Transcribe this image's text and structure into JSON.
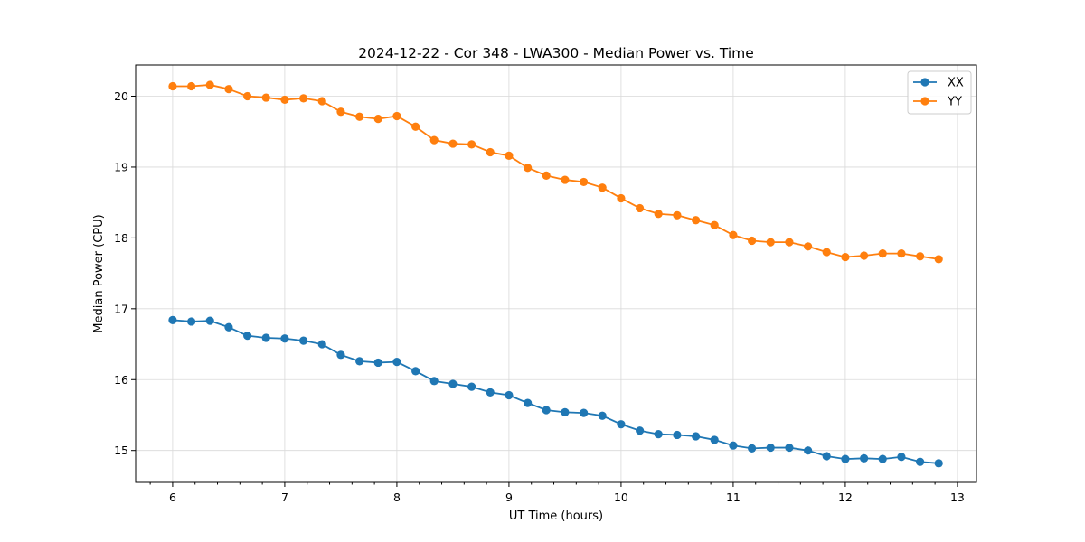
{
  "chart_data": {
    "type": "line",
    "title": "2024-12-22 - Cor 348 - LWA300 - Median Power vs. Time",
    "xlabel": "UT Time (hours)",
    "ylabel": "Median Power (CPU)",
    "xlim": [
      5.67,
      13.17
    ],
    "ylim": [
      14.55,
      20.44
    ],
    "x_ticks": [
      6,
      7,
      8,
      9,
      10,
      11,
      12,
      13
    ],
    "x_tick_labels": [
      "6",
      "7",
      "8",
      "9",
      "10",
      "11",
      "12",
      "13"
    ],
    "y_ticks": [
      15,
      16,
      17,
      18,
      19,
      20
    ],
    "y_tick_labels": [
      "15",
      "16",
      "17",
      "18",
      "19",
      "20"
    ],
    "grid": true,
    "legend_position": "top-right",
    "x": [
      6.0,
      6.167,
      6.333,
      6.5,
      6.667,
      6.833,
      7.0,
      7.167,
      7.333,
      7.5,
      7.667,
      7.833,
      8.0,
      8.167,
      8.333,
      8.5,
      8.667,
      8.833,
      9.0,
      9.167,
      9.333,
      9.5,
      9.667,
      9.833,
      10.0,
      10.167,
      10.333,
      10.5,
      10.667,
      10.833,
      11.0,
      11.167,
      11.333,
      11.5,
      11.667,
      11.833,
      12.0,
      12.167,
      12.333,
      12.5,
      12.667,
      12.833
    ],
    "series": [
      {
        "name": "XX",
        "color": "#1f77b4",
        "values": [
          16.84,
          16.82,
          16.83,
          16.74,
          16.62,
          16.59,
          16.58,
          16.55,
          16.5,
          16.35,
          16.26,
          16.24,
          16.25,
          16.12,
          15.98,
          15.94,
          15.9,
          15.82,
          15.78,
          15.67,
          15.57,
          15.54,
          15.53,
          15.49,
          15.37,
          15.28,
          15.23,
          15.22,
          15.2,
          15.15,
          15.07,
          15.03,
          15.04,
          15.04,
          15.0,
          14.92,
          14.88,
          14.89,
          14.88,
          14.91,
          14.84,
          14.82
        ]
      },
      {
        "name": "YY",
        "color": "#ff7f0e",
        "values": [
          20.14,
          20.14,
          20.16,
          20.1,
          20.0,
          19.98,
          19.95,
          19.97,
          19.93,
          19.78,
          19.71,
          19.68,
          19.72,
          19.57,
          19.38,
          19.33,
          19.32,
          19.21,
          19.16,
          18.99,
          18.88,
          18.82,
          18.79,
          18.71,
          18.56,
          18.42,
          18.34,
          18.32,
          18.25,
          18.18,
          18.04,
          17.96,
          17.94,
          17.94,
          17.88,
          17.8,
          17.73,
          17.75,
          17.78,
          17.78,
          17.74,
          17.7
        ]
      }
    ]
  }
}
